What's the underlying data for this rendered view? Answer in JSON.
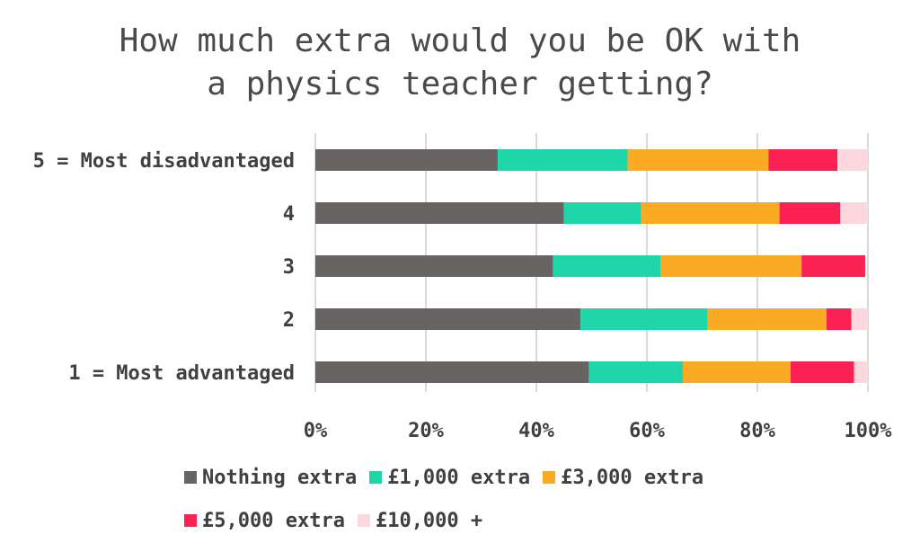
{
  "chart_data": {
    "type": "bar",
    "orientation": "horizontal",
    "stacked": true,
    "title_lines": [
      "How much extra would you be OK with",
      "a physics teacher getting?"
    ],
    "categories": [
      "5 = Most disadvantaged",
      "4",
      "3",
      "2",
      "1 = Most advantaged"
    ],
    "xlim": [
      0,
      100
    ],
    "x_tick_labels": [
      "0%",
      "20%",
      "40%",
      "60%",
      "80%",
      "100%"
    ],
    "x_ticks": [
      0,
      20,
      40,
      60,
      80,
      100
    ],
    "grid": true,
    "legend_position": "bottom",
    "series": [
      {
        "name": "Nothing extra",
        "color": "#686463",
        "values": [
          33,
          45,
          43,
          48,
          49.5
        ]
      },
      {
        "name": "£1,000 extra",
        "color": "#1fd6a8",
        "values": [
          23.5,
          14,
          19.5,
          23,
          17
        ]
      },
      {
        "name": "£3,000 extra",
        "color": "#fbaa24",
        "values": [
          25.5,
          25,
          25.5,
          21.5,
          19.5
        ]
      },
      {
        "name": "£5,000 extra",
        "color": "#fb2152",
        "values": [
          12.5,
          11,
          11.5,
          4.5,
          11.5
        ]
      },
      {
        "name": "£10,000 +",
        "color": "#fcd7dd",
        "values": [
          5.5,
          5,
          0,
          3,
          2.5
        ]
      }
    ]
  }
}
